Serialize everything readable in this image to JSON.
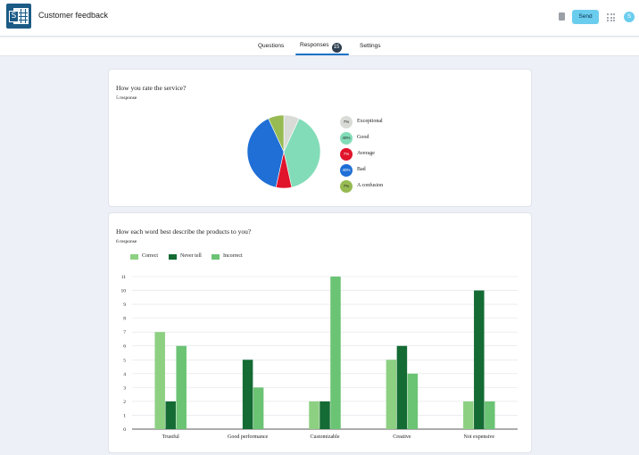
{
  "header": {
    "title": "Customer feedback",
    "send_label": "Send",
    "avatar_initial": "S",
    "logo_letter": "S",
    "accent": "#6bcdee"
  },
  "tabs": [
    {
      "label": "Questions"
    },
    {
      "label": "Responses",
      "badge": "15"
    },
    {
      "label": "Settings"
    }
  ],
  "questions": [
    {
      "title": "How you rate the service?",
      "count": "5 response"
    },
    {
      "title": "How each word best describe the products to you?",
      "count": "6 response"
    }
  ],
  "chart_data": [
    {
      "type": "pie",
      "title": "How you rate the service?",
      "slices": [
        {
          "label": "Exceptional",
          "pct_label": "7%",
          "value": 7,
          "color": "#d9dcd6"
        },
        {
          "label": "Good",
          "pct_label": "40%",
          "value": 40,
          "color": "#82dcb8"
        },
        {
          "label": "Average",
          "pct_label": "7%",
          "value": 7,
          "color": "#e0142b"
        },
        {
          "label": "Bad",
          "pct_label": "40%",
          "value": 40,
          "color": "#1f6fd6"
        },
        {
          "label": "A confusion",
          "pct_label": "7%",
          "value": 7,
          "color": "#97ba52"
        }
      ]
    },
    {
      "type": "bar",
      "title": "How each word best describe the products to you?",
      "categories": [
        "Trustful",
        "Good performance",
        "Customizable",
        "Creative",
        "Not expensive"
      ],
      "series": [
        {
          "name": "Correct",
          "color": "#8dd082",
          "values": [
            7,
            0,
            2,
            5,
            2
          ]
        },
        {
          "name": "Never tell",
          "color": "#146b34",
          "values": [
            2,
            5,
            2,
            6,
            10
          ]
        },
        {
          "name": "Incorrect",
          "color": "#6bc374",
          "values": [
            6,
            3,
            11,
            4,
            2
          ]
        }
      ],
      "yticks": [
        "0",
        "1",
        "2",
        "3",
        "4",
        "5",
        "6",
        "7",
        "8",
        "9",
        "10",
        "11"
      ],
      "ylim": [
        0,
        11
      ]
    }
  ]
}
